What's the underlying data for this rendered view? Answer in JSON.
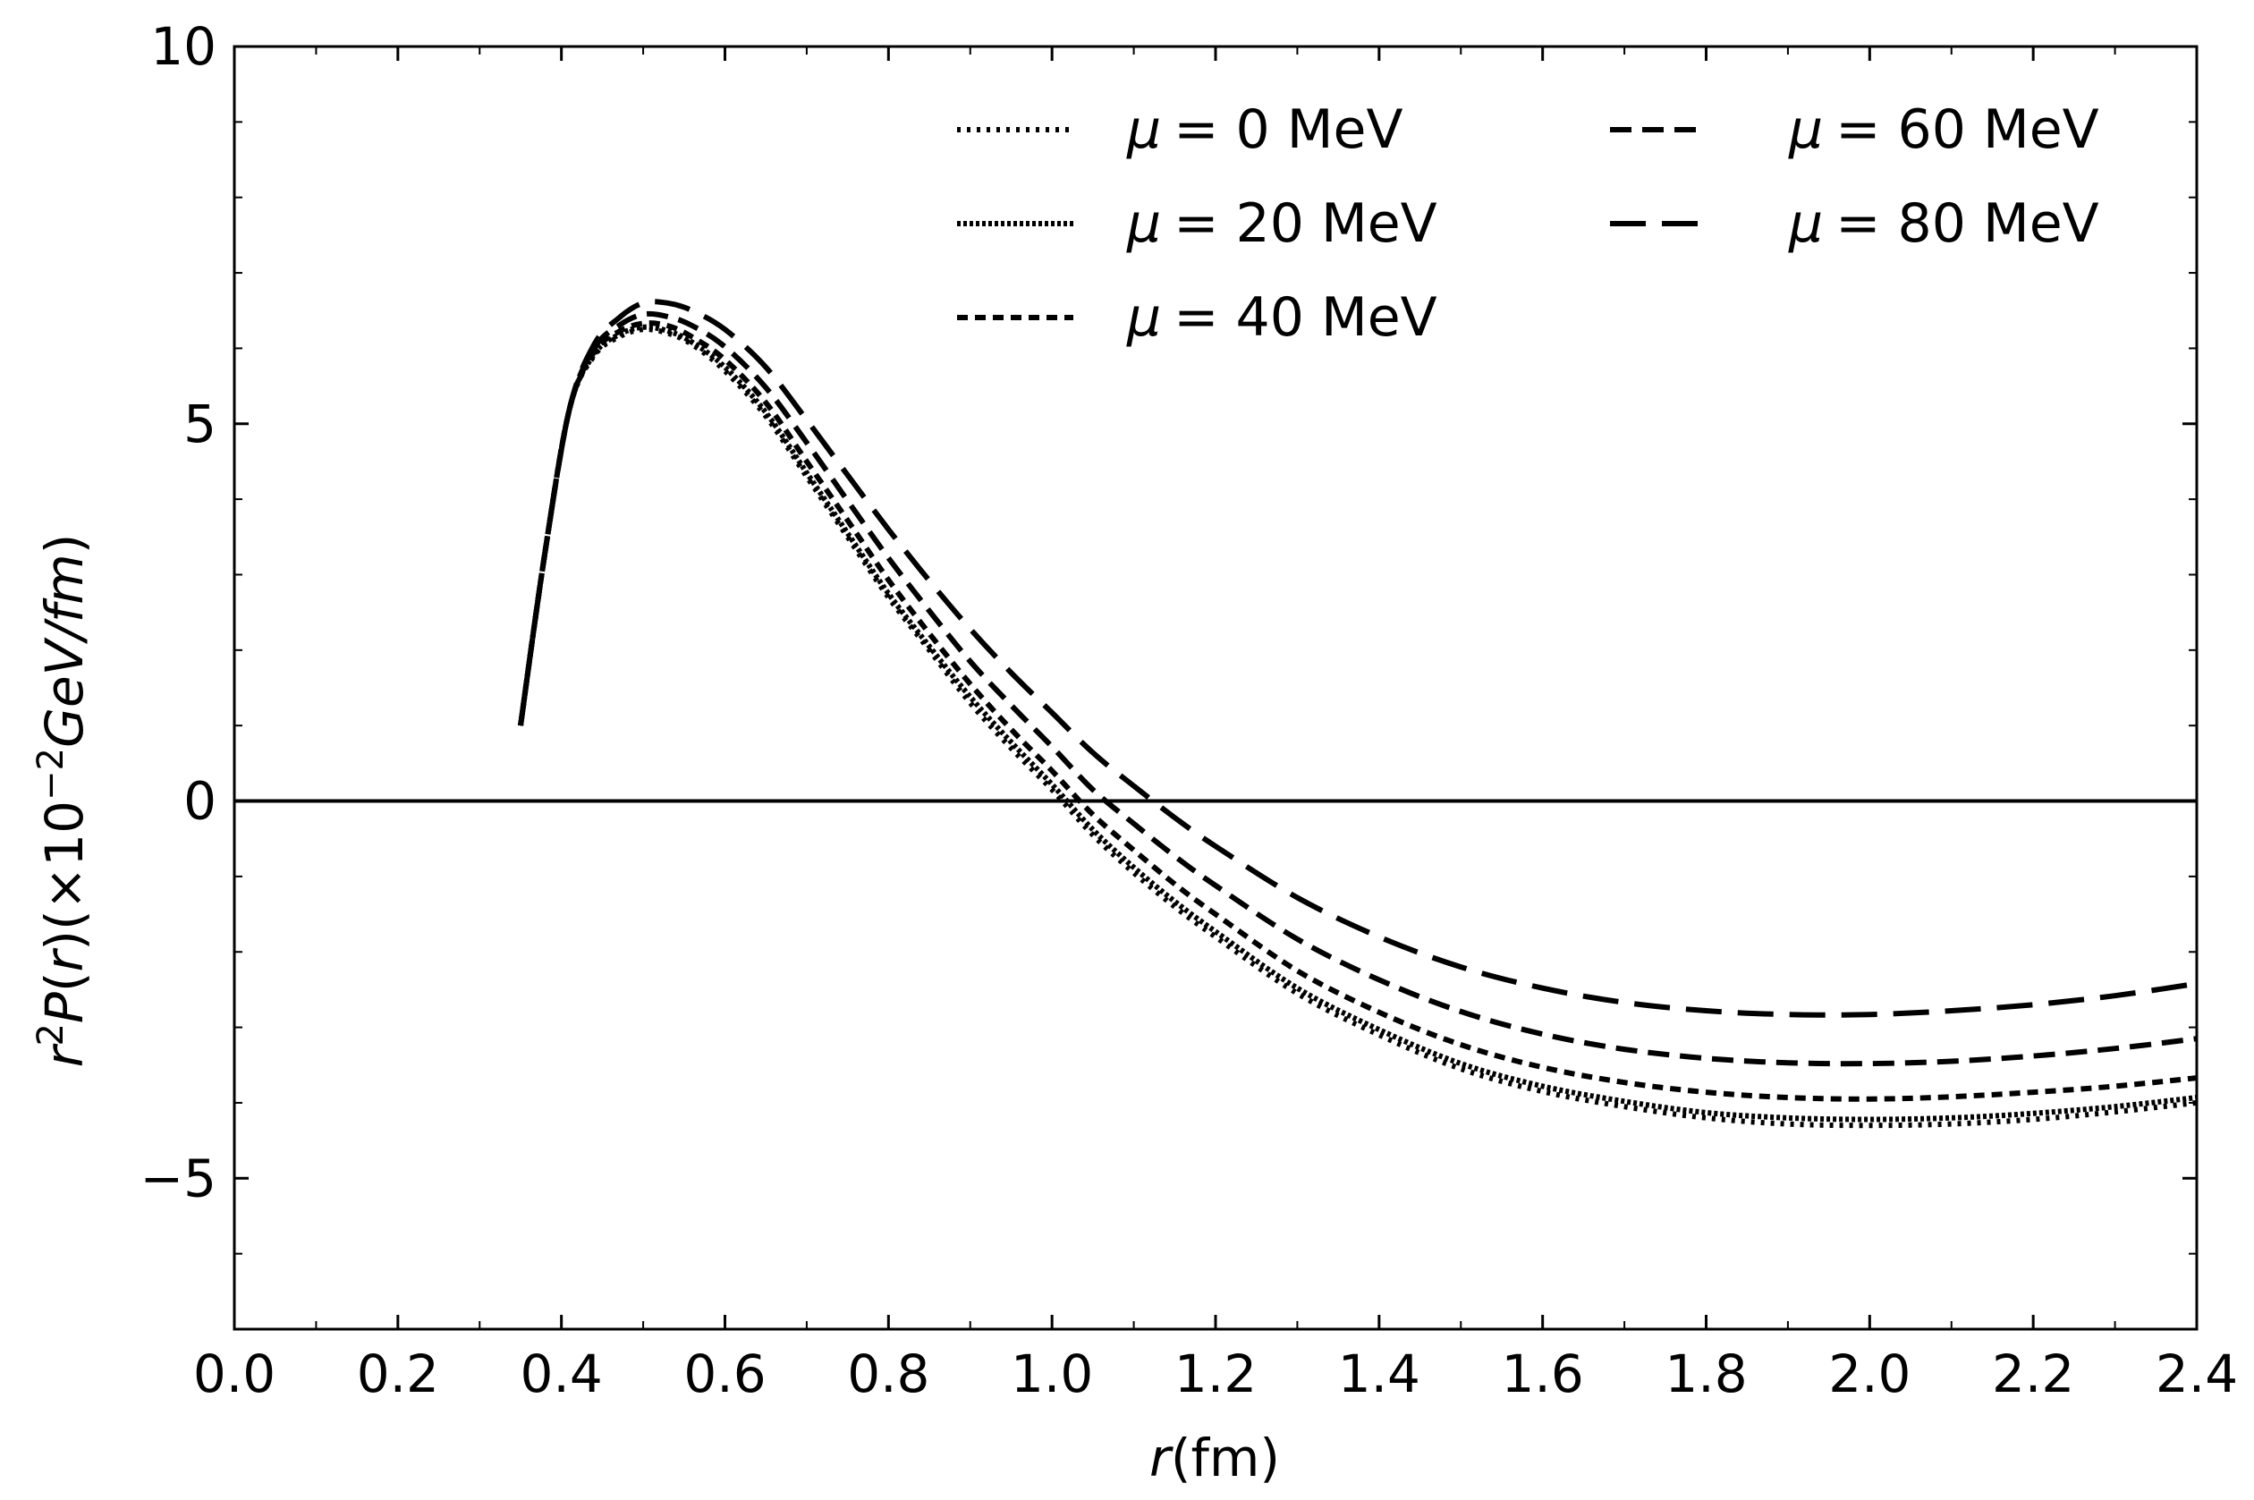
{
  "chart_data": {
    "type": "line",
    "title": "",
    "xlabel": "r(fm)",
    "ylabel": "r²P(r)(×10⁻²GeV/fm)",
    "xlim": [
      0.0,
      2.4
    ],
    "ylim": [
      -7,
      10
    ],
    "xticks": [
      0.0,
      0.2,
      0.4,
      0.6,
      0.8,
      1.0,
      1.2,
      1.4,
      1.6,
      1.8,
      2.0,
      2.2,
      2.4
    ],
    "xtick_labels": [
      "0.0",
      "0.2",
      "0.4",
      "0.6",
      "0.8",
      "1.0",
      "1.2",
      "1.4",
      "1.6",
      "1.8",
      "2.0",
      "2.2",
      "2.4"
    ],
    "yticks": [
      -5,
      0,
      5,
      10
    ],
    "ytick_labels": [
      "−5",
      "0",
      "5",
      "10"
    ],
    "grid": false,
    "zero_line": true,
    "legend_position": "top-right",
    "x": [
      0.35,
      0.38,
      0.41,
      0.44,
      0.47,
      0.5,
      0.53,
      0.56,
      0.6,
      0.65,
      0.7,
      0.75,
      0.8,
      0.85,
      0.9,
      0.95,
      1.0,
      1.05,
      1.1,
      1.15,
      1.2,
      1.3,
      1.4,
      1.5,
      1.6,
      1.7,
      1.8,
      1.9,
      2.0,
      2.1,
      2.2,
      2.3,
      2.4
    ],
    "series": [
      {
        "name": "μ = 0 MeV",
        "mu_label": "μ",
        "value_label": "= 0 MeV",
        "style": "loose-dotted",
        "values": [
          1.0,
          3.3,
          5.2,
          5.9,
          6.15,
          6.25,
          6.2,
          6.05,
          5.7,
          5.1,
          4.3,
          3.5,
          2.7,
          2.0,
          1.3,
          0.7,
          0.15,
          -0.45,
          -0.95,
          -1.4,
          -1.8,
          -2.55,
          -3.1,
          -3.55,
          -3.85,
          -4.05,
          -4.2,
          -4.28,
          -4.3,
          -4.28,
          -4.22,
          -4.12,
          -4.0
        ]
      },
      {
        "name": "μ = 20 MeV",
        "mu_label": "μ",
        "value_label": "= 20 MeV",
        "style": "dense-dotted",
        "values": [
          1.0,
          3.3,
          5.2,
          5.92,
          6.18,
          6.28,
          6.23,
          6.08,
          5.75,
          5.15,
          4.35,
          3.55,
          2.75,
          2.05,
          1.38,
          0.78,
          0.22,
          -0.38,
          -0.88,
          -1.33,
          -1.73,
          -2.48,
          -3.03,
          -3.48,
          -3.78,
          -3.98,
          -4.13,
          -4.2,
          -4.22,
          -4.2,
          -4.14,
          -4.05,
          -3.93
        ]
      },
      {
        "name": "μ = 40 MeV",
        "mu_label": "μ",
        "value_label": "= 40 MeV",
        "style": "short-dashed",
        "values": [
          1.0,
          3.3,
          5.2,
          5.95,
          6.22,
          6.33,
          6.3,
          6.15,
          5.85,
          5.28,
          4.5,
          3.72,
          2.93,
          2.22,
          1.55,
          0.95,
          0.4,
          -0.18,
          -0.65,
          -1.1,
          -1.5,
          -2.25,
          -2.8,
          -3.23,
          -3.53,
          -3.73,
          -3.86,
          -3.93,
          -3.95,
          -3.92,
          -3.86,
          -3.78,
          -3.67
        ]
      },
      {
        "name": "μ = 60 MeV",
        "mu_label": "μ",
        "value_label": "= 60 MeV",
        "style": "medium-dashed",
        "values": [
          1.0,
          3.3,
          5.2,
          6.0,
          6.3,
          6.45,
          6.42,
          6.3,
          6.02,
          5.48,
          4.75,
          3.98,
          3.22,
          2.52,
          1.85,
          1.27,
          0.72,
          0.15,
          -0.3,
          -0.73,
          -1.12,
          -1.83,
          -2.37,
          -2.79,
          -3.09,
          -3.29,
          -3.41,
          -3.47,
          -3.48,
          -3.45,
          -3.38,
          -3.28,
          -3.15
        ]
      },
      {
        "name": "μ = 80 MeV",
        "mu_label": "μ",
        "value_label": "= 80 MeV",
        "style": "long-dashed",
        "values": [
          1.0,
          3.3,
          5.2,
          6.05,
          6.4,
          6.6,
          6.6,
          6.5,
          6.25,
          5.75,
          5.05,
          4.32,
          3.6,
          2.92,
          2.28,
          1.7,
          1.17,
          0.64,
          0.2,
          -0.22,
          -0.6,
          -1.28,
          -1.8,
          -2.2,
          -2.48,
          -2.67,
          -2.78,
          -2.83,
          -2.83,
          -2.78,
          -2.7,
          -2.58,
          -2.42
        ]
      }
    ]
  }
}
